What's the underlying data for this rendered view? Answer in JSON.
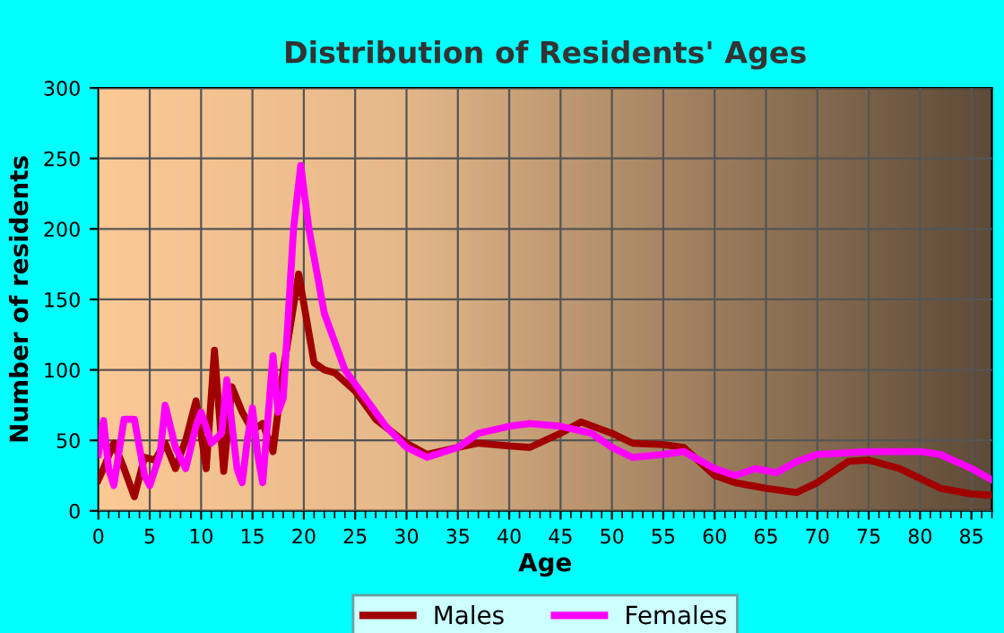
{
  "chart_data": {
    "type": "line",
    "title": "Distribution of Residents' Ages",
    "xlabel": "Age",
    "ylabel": "Number of residents",
    "xlim": [
      0,
      87
    ],
    "xticks": [
      0,
      5,
      10,
      15,
      20,
      25,
      30,
      35,
      40,
      45,
      50,
      55,
      60,
      65,
      70,
      75,
      80,
      85
    ],
    "ylim": [
      0,
      300
    ],
    "yticks": [
      0,
      50,
      100,
      150,
      200,
      250,
      300
    ],
    "grid": true,
    "legend": "bottom",
    "series": [
      {
        "name": "Males",
        "color": "#a00000",
        "x": [
          0,
          0.5,
          1.5,
          2.5,
          3.5,
          4.5,
          5.5,
          6.5,
          7.5,
          8.5,
          9.5,
          10.5,
          11.3,
          12.2,
          13,
          14,
          15,
          16,
          17,
          18,
          19.5,
          21,
          22,
          23,
          25,
          27,
          30,
          32,
          35,
          37,
          40,
          42,
          45,
          47,
          50,
          52,
          55,
          57,
          60,
          62,
          65,
          68,
          70,
          73,
          75,
          78,
          82,
          85,
          87
        ],
        "values": [
          22,
          30,
          48,
          30,
          10,
          38,
          36,
          48,
          30,
          50,
          78,
          30,
          114,
          28,
          88,
          70,
          57,
          62,
          42,
          100,
          168,
          105,
          100,
          98,
          85,
          65,
          48,
          40,
          45,
          48,
          46,
          45,
          55,
          63,
          55,
          48,
          47,
          45,
          25,
          20,
          16,
          13,
          20,
          35,
          36,
          30,
          16,
          12,
          11
        ]
      },
      {
        "name": "Females",
        "color": "#ff00ff",
        "x": [
          0,
          0.5,
          1,
          1.5,
          2.5,
          3.5,
          4.5,
          5,
          6,
          6.5,
          7.5,
          8.5,
          9.5,
          10,
          11,
          12,
          12.5,
          13.5,
          14,
          14.5,
          15,
          15.5,
          16,
          17,
          17.5,
          18,
          19,
          19.7,
          20.5,
          22,
          24,
          26,
          28,
          30,
          32,
          35,
          37,
          40,
          42,
          45,
          48,
          50,
          52,
          55,
          57,
          60,
          62,
          64,
          66,
          68,
          70,
          75,
          80,
          82,
          85,
          87
        ],
        "values": [
          40,
          64,
          30,
          18,
          65,
          65,
          25,
          18,
          40,
          75,
          45,
          30,
          60,
          70,
          48,
          55,
          93,
          30,
          20,
          50,
          73,
          40,
          20,
          110,
          70,
          80,
          200,
          245,
          200,
          140,
          100,
          80,
          60,
          45,
          38,
          45,
          55,
          60,
          62,
          60,
          55,
          45,
          38,
          40,
          42,
          30,
          25,
          30,
          27,
          35,
          40,
          42,
          42,
          40,
          30,
          22
        ]
      }
    ]
  }
}
